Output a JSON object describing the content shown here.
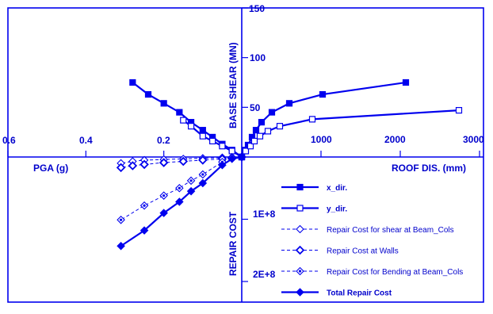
{
  "chart_data": {
    "type": "line",
    "quadrants": {
      "top_right": {
        "xlabel": "ROOF DIS. (mm)",
        "ylabel": "BASE SHEAR (MN)",
        "xlim": [
          0,
          3000
        ],
        "ylim": [
          0,
          150
        ],
        "xticks": [
          "1000",
          "2000",
          "3000"
        ],
        "yticks": [
          "50",
          "100",
          "150"
        ]
      },
      "top_left": {
        "xlabel": "PGA (g)",
        "xlim": [
          0,
          0.6
        ],
        "xticks": [
          "0.2",
          "0.4",
          "0.6"
        ]
      },
      "bottom_right": {
        "ylabel": "REPAIR COST",
        "ylim": [
          0,
          235000000.0
        ],
        "yticks": [
          "1E+8",
          "2E+8"
        ]
      }
    },
    "series": [
      {
        "name": "x_dir.",
        "quadrant": "roof-dis-vs-base-shear",
        "x": [
          0,
          40,
          80,
          130,
          180,
          250,
          380,
          600,
          1020,
          2070
        ],
        "y": [
          0,
          7,
          12,
          20,
          27,
          35,
          45,
          54,
          63,
          75
        ]
      },
      {
        "name": "y_dir.",
        "quadrant": "roof-dis-vs-base-shear",
        "x": [
          0,
          50,
          110,
          160,
          230,
          330,
          480,
          890,
          2740
        ],
        "y": [
          0,
          6,
          11,
          16,
          21,
          26,
          31,
          38,
          47
        ]
      },
      {
        "name": "x_dir.",
        "quadrant": "pga-vs-base-shear",
        "x": [
          0,
          0.025,
          0.05,
          0.075,
          0.1,
          0.13,
          0.16,
          0.2,
          0.24,
          0.28
        ],
        "y": [
          0,
          7,
          13,
          20,
          27,
          35,
          45,
          54,
          63,
          75
        ]
      },
      {
        "name": "y_dir.",
        "quadrant": "pga-vs-base-shear",
        "x": [
          0,
          0.025,
          0.05,
          0.075,
          0.1,
          0.13,
          0.15
        ],
        "y": [
          0,
          6,
          11,
          16,
          21,
          31,
          37
        ]
      },
      {
        "name": "Repair Cost for shear at  Beam_Cols",
        "quadrant": "pga-vs-repair-cost",
        "x": [
          0,
          0.025,
          0.05,
          0.1,
          0.15,
          0.2,
          0.25,
          0.28,
          0.31
        ],
        "y": [
          0,
          500000.0,
          1000000.0,
          2000000.0,
          3000000.0,
          4000000.0,
          5000000.0,
          7000000.0,
          10000000.0
        ]
      },
      {
        "name": "Repair Cost at Walls",
        "quadrant": "pga-vs-repair-cost",
        "x": [
          0,
          0.025,
          0.05,
          0.1,
          0.15,
          0.2,
          0.25,
          0.28,
          0.31
        ],
        "y": [
          0,
          1000000.0,
          3000000.0,
          5000000.0,
          7000000.0,
          9000000.0,
          12000000.0,
          14000000.0,
          17000000.0
        ]
      },
      {
        "name": "Repair Cost for Bending at Beam_Cols",
        "quadrant": "pga-vs-repair-cost",
        "x": [
          0,
          0.025,
          0.05,
          0.1,
          0.13,
          0.16,
          0.2,
          0.25,
          0.31
        ],
        "y": [
          0,
          1000000.0,
          8000000.0,
          28000000.0,
          38000000.0,
          50000000.0,
          62000000.0,
          78000000.0,
          101000000.0
        ]
      },
      {
        "name": "Total Repair Cost",
        "quadrant": "pga-vs-repair-cost",
        "x": [
          0,
          0.025,
          0.05,
          0.1,
          0.13,
          0.16,
          0.2,
          0.25,
          0.31
        ],
        "y": [
          0,
          3000000.0,
          13000000.0,
          42000000.0,
          55000000.0,
          72000000.0,
          90000000.0,
          118000000.0,
          143000000.0
        ]
      }
    ],
    "legend": [
      {
        "name": "x_dir.",
        "marker": "square-filled",
        "bold": true
      },
      {
        "name": "y_dir.",
        "marker": "square-open",
        "bold": true
      },
      {
        "name": "Repair Cost for shear at  Beam_Cols",
        "marker": "diamond-open",
        "dashed": true
      },
      {
        "name": "Repair Cost at Walls",
        "marker": "diamond-open-thick",
        "dashed": true
      },
      {
        "name": "Repair Cost for Bending at Beam_Cols",
        "marker": "diamond-dot",
        "dashed": true
      },
      {
        "name": "Total Repair Cost",
        "marker": "diamond-filled",
        "bold": true
      }
    ],
    "legend_position": "bottom-right",
    "grid": false,
    "color": "#0000ee"
  }
}
